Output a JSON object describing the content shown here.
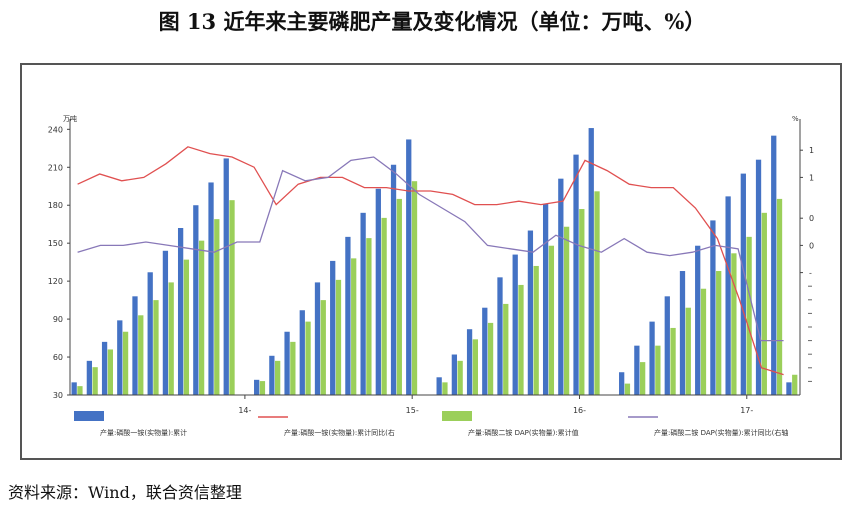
{
  "title": "图 13    近年来主要磷肥产量及变化情况（单位：万吨、%）",
  "source": "资料来源：Wind，联合资信整理",
  "colors": {
    "bar1": "#4472c4",
    "bar2": "#9bcf5a",
    "line1": "#e05050",
    "line2": "#8878b8"
  },
  "chart_data": {
    "type": "bar",
    "left_unit": "万吨",
    "right_unit": "%",
    "ylim_left": [
      30,
      245
    ],
    "ylim_right": [
      -2.2,
      1.8
    ],
    "left_ticks": [
      "240",
      "210",
      "180",
      "150",
      "120",
      "90",
      "60",
      "30"
    ],
    "left_tick_values": [
      240,
      210,
      180,
      150,
      120,
      90,
      60,
      30
    ],
    "right_ticks": [
      "1",
      "1",
      "0",
      "0",
      "-"
    ],
    "right_tick_values": [
      1.4,
      1.0,
      0.4,
      0.0,
      -0.4
    ],
    "x_ticks": [
      {
        "label": "14-",
        "index": 11
      },
      {
        "label": "15-",
        "index": 22
      },
      {
        "label": "16-",
        "index": 33
      },
      {
        "label": "17-",
        "index": 44
      }
    ],
    "categories_count": 48,
    "series": [
      {
        "name": "产量:磷酸一铵(实物量):累计",
        "kind": "bar",
        "values": [
          40,
          57,
          72,
          89,
          108,
          127,
          144,
          162,
          180,
          198,
          217,
          null,
          42,
          61,
          80,
          97,
          119,
          136,
          155,
          174,
          193,
          212,
          232,
          null,
          44,
          62,
          82,
          99,
          123,
          141,
          160,
          181,
          201,
          220,
          241,
          null,
          48,
          69,
          88,
          108,
          128,
          148,
          168,
          187,
          205,
          216,
          235,
          40
        ]
      },
      {
        "name": "产量:磷酸二铵 DAP(实物量):累计值",
        "kind": "bar",
        "values": [
          37,
          52,
          66,
          80,
          93,
          105,
          119,
          137,
          152,
          169,
          184,
          null,
          41,
          57,
          72,
          88,
          105,
          121,
          138,
          154,
          170,
          185,
          199,
          null,
          40,
          57,
          74,
          87,
          102,
          117,
          132,
          148,
          163,
          177,
          191,
          null,
          39,
          56,
          69,
          83,
          99,
          114,
          128,
          142,
          155,
          174,
          185,
          46
        ]
      },
      {
        "name": "产量:磷酸一铵(实物量):累计同比(右",
        "kind": "line",
        "values": [
          0.9,
          1.05,
          0.95,
          1.0,
          1.2,
          1.45,
          1.35,
          1.3,
          1.15,
          0.6,
          0.9,
          1.0,
          1.0,
          0.85,
          0.85,
          0.8,
          0.8,
          0.75,
          0.6,
          0.6,
          0.65,
          0.6,
          0.65,
          1.25,
          1.1,
          0.9,
          0.85,
          0.85,
          0.55,
          0.1,
          -0.8,
          -1.8,
          -1.9
        ]
      },
      {
        "name": "产量:磷酸二铵 DAP(实物量):累计同比(右轴",
        "kind": "line",
        "values": [
          -0.1,
          0.0,
          0.0,
          0.05,
          0.0,
          -0.05,
          -0.1,
          0.05,
          0.05,
          1.1,
          0.95,
          1.0,
          1.25,
          1.3,
          1.05,
          0.75,
          0.55,
          0.35,
          0.0,
          -0.05,
          -0.1,
          0.15,
          0.0,
          -0.1,
          0.1,
          -0.1,
          -0.15,
          -0.1,
          0.0,
          -0.05,
          -1.4,
          -1.4
        ]
      }
    ]
  }
}
